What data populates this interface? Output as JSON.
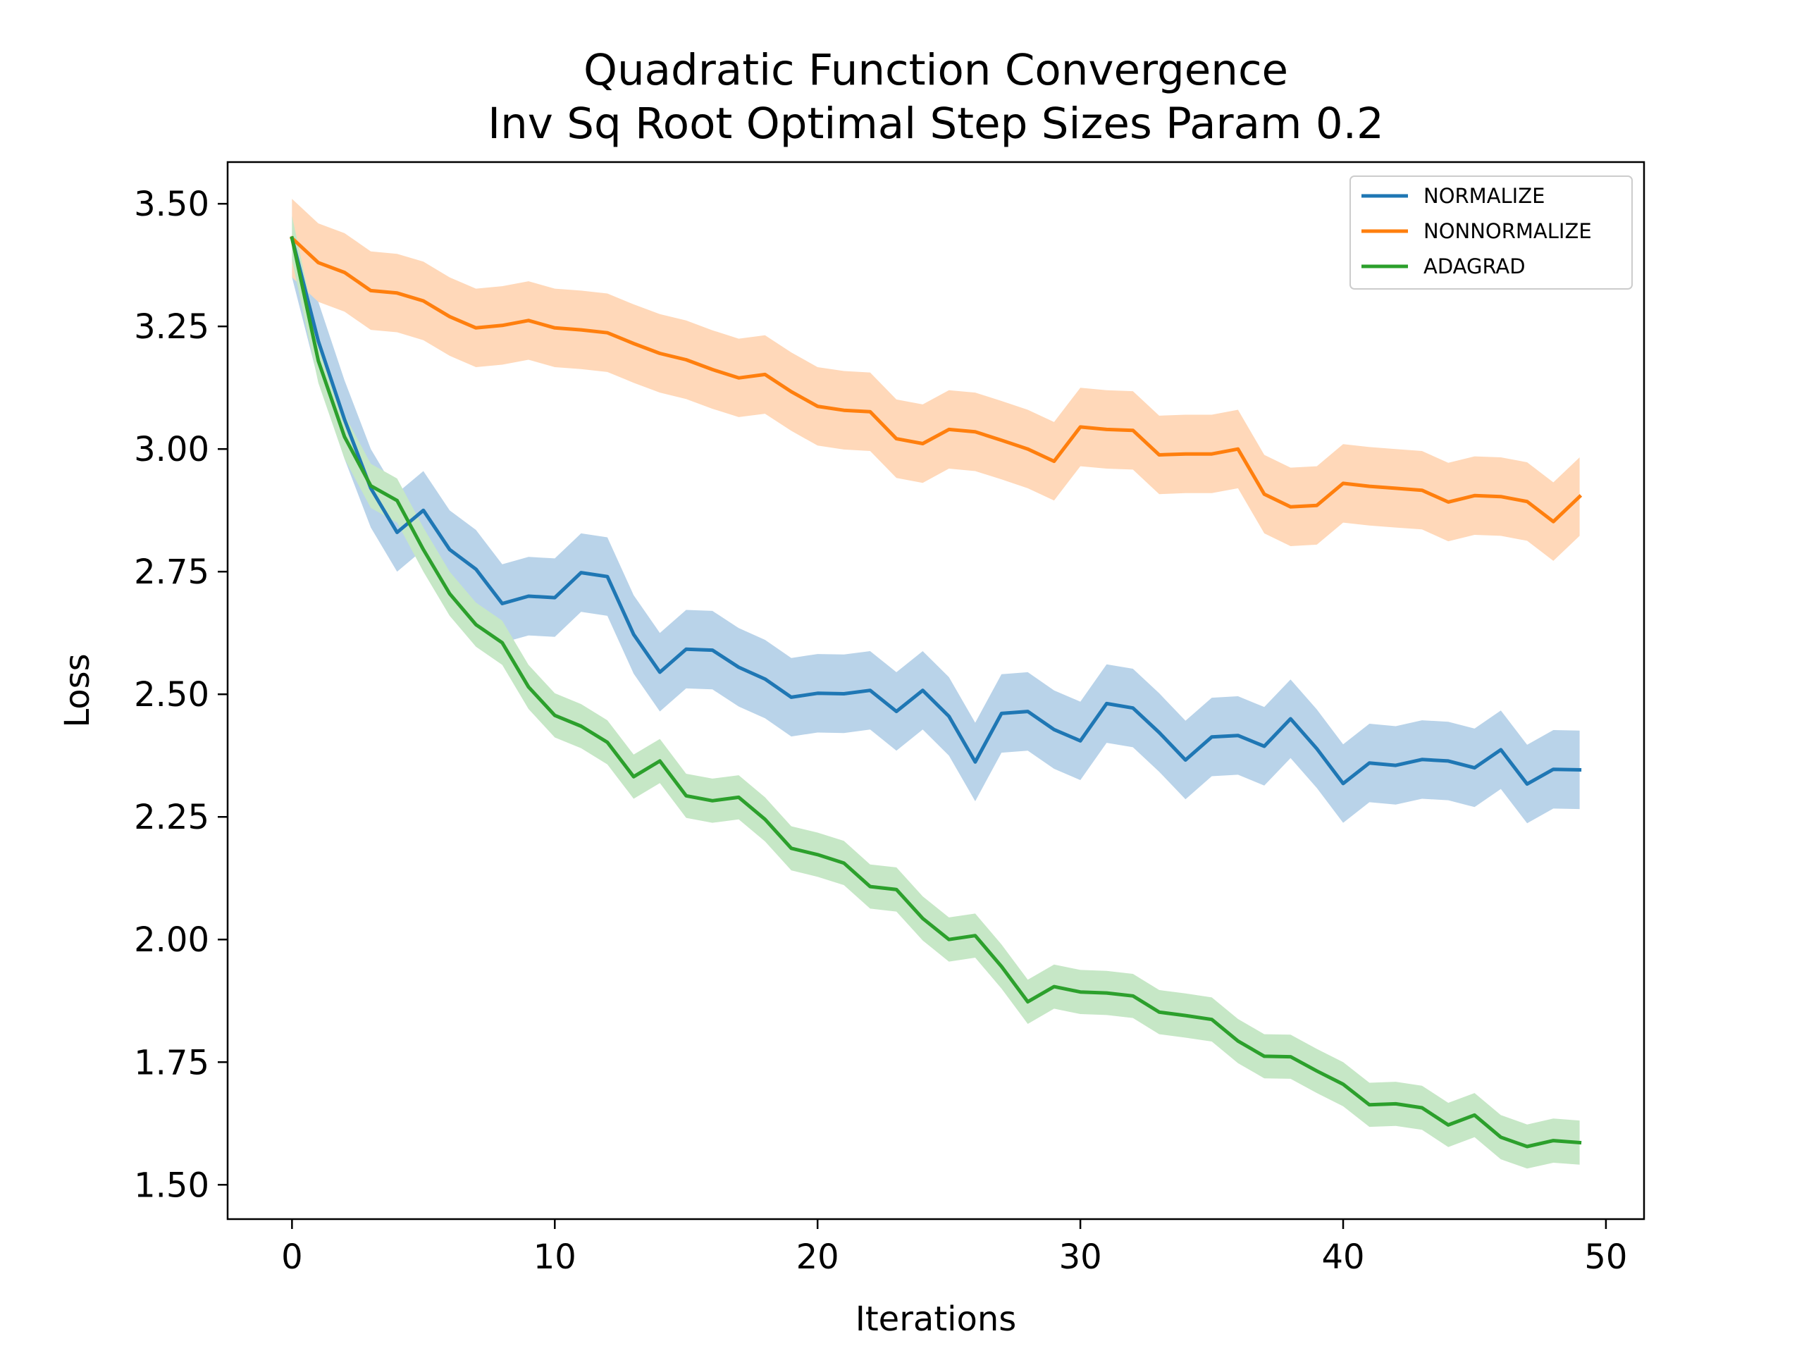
{
  "chart_data": {
    "type": "line",
    "title": "Quadratic Function Convergence",
    "subtitle": "Inv Sq Root Optimal Step Sizes Param 0.2",
    "xlabel": "Iterations",
    "ylabel": "Loss",
    "xlim": [
      -2.45,
      51.45
    ],
    "ylim": [
      1.43,
      3.585
    ],
    "xticks": [
      0,
      10,
      20,
      30,
      40,
      50
    ],
    "xtick_labels": [
      "0",
      "10",
      "20",
      "30",
      "40",
      "50"
    ],
    "yticks": [
      1.5,
      1.75,
      2.0,
      2.25,
      2.5,
      2.75,
      3.0,
      3.25,
      3.5
    ],
    "ytick_labels": [
      "1.50",
      "1.75",
      "2.00",
      "2.25",
      "2.50",
      "2.75",
      "3.00",
      "3.25",
      "3.50"
    ],
    "grid": false,
    "legend_position": "top-right",
    "x": [
      0,
      1,
      2,
      3,
      4,
      5,
      6,
      7,
      8,
      9,
      10,
      11,
      12,
      13,
      14,
      15,
      16,
      17,
      18,
      19,
      20,
      21,
      22,
      23,
      24,
      25,
      26,
      27,
      28,
      29,
      30,
      31,
      32,
      33,
      34,
      35,
      36,
      37,
      38,
      39,
      40,
      41,
      42,
      43,
      44,
      45,
      46,
      47,
      48,
      49
    ],
    "series": [
      {
        "name": "NORMALIZE",
        "color": "#1f77b4",
        "band_color": "#b9d3e9",
        "band_width": 0.08,
        "values": [
          3.43,
          3.22,
          3.06,
          2.92,
          2.83,
          2.875,
          2.795,
          2.755,
          2.685,
          2.7,
          2.697,
          2.748,
          2.74,
          2.622,
          2.545,
          2.592,
          2.59,
          2.555,
          2.531,
          2.494,
          2.502,
          2.501,
          2.508,
          2.465,
          2.508,
          2.455,
          2.362,
          2.461,
          2.465,
          2.428,
          2.405,
          2.481,
          2.472,
          2.422,
          2.366,
          2.413,
          2.416,
          2.394,
          2.45,
          2.389,
          2.318,
          2.36,
          2.355,
          2.367,
          2.364,
          2.35,
          2.387,
          2.317,
          2.347,
          2.346
        ]
      },
      {
        "name": "NONNORMALIZE",
        "color": "#ff7f0e",
        "band_color": "#ffd8b9",
        "band_width": 0.08,
        "values": [
          3.43,
          3.38,
          3.36,
          3.323,
          3.318,
          3.302,
          3.27,
          3.247,
          3.252,
          3.262,
          3.247,
          3.243,
          3.237,
          3.215,
          3.195,
          3.182,
          3.162,
          3.145,
          3.152,
          3.117,
          3.087,
          3.079,
          3.076,
          3.021,
          3.011,
          3.04,
          3.035,
          3.018,
          3.0,
          2.975,
          3.045,
          3.04,
          3.038,
          2.988,
          2.99,
          2.99,
          3.0,
          2.908,
          2.882,
          2.885,
          2.93,
          2.924,
          2.92,
          2.916,
          2.892,
          2.905,
          2.903,
          2.893,
          2.852,
          2.903
        ]
      },
      {
        "name": "ADAGRAD",
        "color": "#2ca02c",
        "band_color": "#c6e7c6",
        "band_width": 0.045,
        "values": [
          3.43,
          3.18,
          3.025,
          2.925,
          2.895,
          2.795,
          2.705,
          2.642,
          2.605,
          2.515,
          2.457,
          2.435,
          2.402,
          2.332,
          2.364,
          2.293,
          2.283,
          2.29,
          2.245,
          2.186,
          2.173,
          2.156,
          2.108,
          2.102,
          2.043,
          2.0,
          2.008,
          1.945,
          1.873,
          1.904,
          1.893,
          1.891,
          1.885,
          1.852,
          1.845,
          1.837,
          1.793,
          1.762,
          1.761,
          1.732,
          1.705,
          1.663,
          1.665,
          1.657,
          1.622,
          1.642,
          1.597,
          1.578,
          1.59,
          1.586
        ]
      }
    ]
  }
}
